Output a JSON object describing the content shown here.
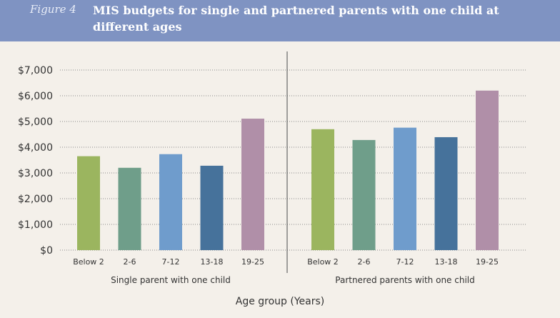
{
  "figure": {
    "label": "Figure 4",
    "title": "MIS budgets for single and partnered parents with one child at different ages"
  },
  "colors": {
    "header_bg": "#7f93c2",
    "plot_bg": "#f4f0ea",
    "bar_colors": [
      "#9bb55f",
      "#6f9e8a",
      "#6f9ccc",
      "#46729b",
      "#b08fa8"
    ]
  },
  "chart_data": {
    "type": "bar",
    "xlabel": "Age group (Years)",
    "ylabel": "",
    "ylim": [
      0,
      7000
    ],
    "yticks": [
      "$0",
      "$1,000",
      "$2,000",
      "$3,000",
      "$4,000",
      "$5,000",
      "$6,000",
      "$7,000"
    ],
    "grid": true,
    "groups": [
      {
        "name": "Single parent with one child",
        "categories": [
          "Below 2",
          "2-6",
          "7-12",
          "13-18",
          "19-25"
        ],
        "values": [
          3650,
          3200,
          3730,
          3280,
          5110
        ]
      },
      {
        "name": "Partnered parents with one child",
        "categories": [
          "Below 2",
          "2-6",
          "7-12",
          "13-18",
          "19-25"
        ],
        "values": [
          4700,
          4280,
          4760,
          4390,
          6200
        ]
      }
    ]
  }
}
